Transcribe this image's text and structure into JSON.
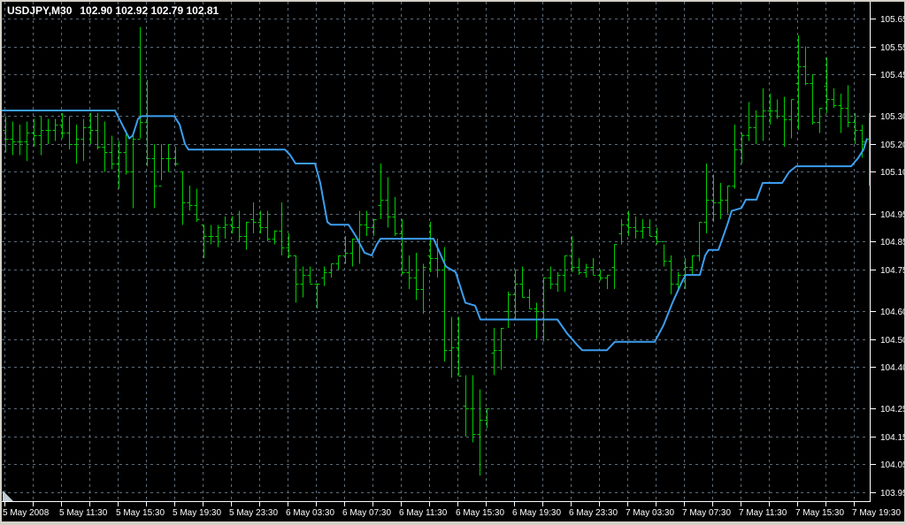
{
  "window": {
    "title_symbol": "USDJPY,M30",
    "title_quotes": "102.90 102.92 102.79 102.81"
  },
  "chart_data": {
    "type": "ohlc-bar",
    "title": "USDJPY,M30",
    "symbol": "USDJPY",
    "timeframe": "M30",
    "quote": {
      "open": "102.90",
      "high": "102.92",
      "low": "102.79",
      "close": "102.81"
    },
    "y_axis": {
      "side": "right",
      "min": 103.95,
      "max": 105.65,
      "ticks": [
        105.65,
        105.55,
        105.45,
        105.3,
        105.2,
        105.1,
        104.95,
        104.85,
        104.75,
        104.6,
        104.5,
        104.4,
        104.25,
        104.15,
        104.05,
        103.95
      ]
    },
    "x_axis": {
      "labels": [
        "5 May 2008",
        "5 May 11:30",
        "5 May 15:30",
        "5 May 19:30",
        "5 May 23:30",
        "6 May 03:30",
        "6 May 07:30",
        "6 May 11:30",
        "6 May 15:30",
        "6 May 19:30",
        "6 May 23:30",
        "7 May 03:30",
        "7 May 07:30",
        "7 May 11:30",
        "7 May 15:30",
        "7 May 19:30"
      ]
    },
    "grid": {
      "visible": true,
      "style": "dashed"
    },
    "bars_ohlc_order": [
      "high",
      "low",
      "open",
      "close"
    ],
    "bars": [
      [
        105.3,
        105.17,
        105.25,
        105.22
      ],
      [
        105.28,
        105.16,
        105.22,
        105.21
      ],
      [
        105.27,
        105.16,
        105.21,
        105.21
      ],
      [
        105.28,
        105.14,
        105.21,
        105.24
      ],
      [
        105.29,
        105.19,
        105.24,
        105.23
      ],
      [
        105.3,
        105.16,
        105.23,
        105.25
      ],
      [
        105.29,
        105.2,
        105.25,
        105.25
      ],
      [
        105.29,
        105.21,
        105.25,
        105.27
      ],
      [
        105.31,
        105.22,
        105.27,
        105.24
      ],
      [
        105.3,
        105.18,
        105.24,
        105.2
      ],
      [
        105.27,
        105.13,
        105.2,
        105.22
      ],
      [
        105.29,
        105.14,
        105.22,
        105.26
      ],
      [
        105.31,
        105.2,
        105.26,
        105.25
      ],
      [
        105.31,
        105.18,
        105.25,
        105.19
      ],
      [
        105.28,
        105.1,
        105.19,
        105.17
      ],
      [
        105.23,
        105.11,
        105.17,
        105.13
      ],
      [
        105.21,
        105.04,
        105.13,
        105.17
      ],
      [
        105.25,
        105.09,
        105.17,
        105.1
      ],
      [
        105.23,
        104.97,
        105.1,
        105.22
      ],
      [
        105.62,
        105.22,
        105.22,
        105.28
      ],
      [
        105.43,
        105.12,
        105.28,
        105.15
      ],
      [
        105.2,
        104.97,
        105.15,
        105.05
      ],
      [
        105.2,
        105.07,
        105.05,
        105.15
      ],
      [
        105.2,
        105.1,
        105.15,
        105.15
      ],
      [
        105.19,
        105.12,
        105.15,
        105.13
      ],
      [
        105.1,
        104.91,
        105.1,
        104.99
      ],
      [
        105.05,
        104.96,
        104.99,
        104.98
      ],
      [
        105.04,
        104.92,
        104.98,
        104.93
      ],
      [
        104.91,
        104.79,
        104.91,
        104.87
      ],
      [
        104.91,
        104.84,
        104.87,
        104.87
      ],
      [
        104.91,
        104.83,
        104.87,
        104.9
      ],
      [
        104.94,
        104.86,
        104.9,
        104.91
      ],
      [
        104.94,
        104.88,
        104.91,
        104.9
      ],
      [
        104.96,
        104.85,
        104.9,
        104.87
      ],
      [
        104.92,
        104.82,
        104.87,
        104.92
      ],
      [
        104.99,
        104.88,
        104.93,
        104.92
      ],
      [
        104.96,
        104.88,
        104.92,
        104.9
      ],
      [
        104.96,
        104.85,
        104.9,
        104.86
      ],
      [
        104.89,
        104.84,
        104.86,
        104.89
      ],
      [
        104.99,
        104.8,
        104.89,
        104.83
      ],
      [
        104.88,
        104.79,
        104.83,
        104.8
      ],
      [
        104.8,
        104.63,
        104.8,
        104.7
      ],
      [
        104.76,
        104.65,
        104.7,
        104.73
      ],
      [
        104.76,
        104.7,
        104.73,
        104.7
      ],
      [
        104.7,
        104.61,
        104.7,
        104.7
      ],
      [
        104.76,
        104.69,
        104.72,
        104.74
      ],
      [
        104.77,
        104.72,
        104.74,
        104.77
      ],
      [
        104.8,
        104.75,
        104.77,
        104.8
      ],
      [
        104.87,
        104.77,
        104.8,
        104.81
      ],
      [
        104.86,
        104.76,
        104.81,
        104.86
      ],
      [
        104.96,
        104.77,
        104.86,
        104.91
      ],
      [
        104.96,
        104.87,
        104.91,
        104.9
      ],
      [
        104.93,
        104.87,
        104.9,
        104.93
      ],
      [
        105.13,
        104.93,
        104.98,
        105.0
      ],
      [
        105.08,
        104.9,
        105.0,
        104.94
      ],
      [
        105.01,
        104.87,
        104.94,
        104.88
      ],
      [
        104.93,
        104.73,
        104.88,
        104.74
      ],
      [
        104.8,
        104.68,
        104.74,
        104.72
      ],
      [
        104.81,
        104.64,
        104.72,
        104.68
      ],
      [
        104.77,
        104.59,
        104.68,
        104.76
      ],
      [
        104.92,
        104.74,
        104.8,
        104.79
      ],
      [
        104.86,
        104.72,
        104.79,
        104.75
      ],
      [
        104.83,
        104.42,
        104.75,
        104.46
      ],
      [
        104.58,
        104.36,
        104.46,
        104.47
      ],
      [
        104.58,
        104.37,
        104.47,
        104.37
      ],
      [
        104.37,
        104.15,
        104.26,
        104.25
      ],
      [
        104.37,
        104.13,
        104.25,
        104.16
      ],
      [
        104.32,
        104.01,
        104.16,
        104.21
      ],
      [
        104.25,
        104.18,
        104.21,
        104.25
      ],
      [
        104.54,
        104.37,
        104.45,
        104.46
      ],
      [
        104.54,
        104.39,
        104.46,
        104.54
      ],
      [
        104.67,
        104.54,
        104.6,
        104.66
      ],
      [
        104.75,
        104.57,
        104.66,
        104.7
      ],
      [
        104.76,
        104.65,
        104.7,
        104.65
      ],
      [
        104.68,
        104.61,
        104.65,
        104.61
      ],
      [
        104.63,
        104.5,
        104.61,
        104.6
      ],
      [
        104.72,
        104.49,
        104.6,
        104.72
      ],
      [
        104.76,
        104.68,
        104.72,
        104.7
      ],
      [
        104.74,
        104.67,
        104.7,
        104.73
      ],
      [
        104.8,
        104.67,
        104.73,
        104.8
      ],
      [
        104.87,
        104.74,
        104.8,
        104.76
      ],
      [
        104.79,
        104.73,
        104.76,
        104.74
      ],
      [
        104.77,
        104.72,
        104.74,
        104.76
      ],
      [
        104.79,
        104.73,
        104.76,
        104.73
      ],
      [
        104.75,
        104.71,
        104.73,
        104.72
      ],
      [
        104.73,
        104.68,
        104.72,
        104.73
      ],
      [
        104.84,
        104.68,
        104.76,
        104.84
      ],
      [
        104.93,
        104.84,
        104.88,
        104.91
      ],
      [
        104.96,
        104.87,
        104.91,
        104.9
      ],
      [
        104.94,
        104.86,
        104.9,
        104.89
      ],
      [
        104.93,
        104.86,
        104.89,
        104.9
      ],
      [
        104.93,
        104.87,
        104.9,
        104.87
      ],
      [
        104.9,
        104.84,
        104.87,
        104.85
      ],
      [
        104.84,
        104.76,
        104.85,
        104.78
      ],
      [
        104.8,
        104.66,
        104.78,
        104.7
      ],
      [
        104.74,
        104.67,
        104.7,
        104.73
      ],
      [
        104.79,
        104.68,
        104.73,
        104.76
      ],
      [
        104.8,
        104.73,
        104.76,
        104.8
      ],
      [
        104.92,
        104.78,
        104.8,
        104.92
      ],
      [
        105.13,
        104.88,
        104.92,
        105.0
      ],
      [
        105.09,
        104.92,
        105.0,
        104.99
      ],
      [
        105.06,
        104.93,
        104.99,
        105.0
      ],
      [
        105.05,
        104.95,
        105.0,
        105.05
      ],
      [
        105.27,
        105.04,
        105.05,
        105.18
      ],
      [
        105.24,
        105.13,
        105.18,
        105.23
      ],
      [
        105.35,
        105.21,
        105.23,
        105.26
      ],
      [
        105.32,
        105.2,
        105.26,
        105.3
      ],
      [
        105.4,
        105.21,
        105.3,
        105.32
      ],
      [
        105.38,
        105.27,
        105.32,
        105.32
      ],
      [
        105.36,
        105.29,
        105.32,
        105.3
      ],
      [
        105.37,
        105.19,
        105.3,
        105.29
      ],
      [
        105.36,
        105.22,
        105.29,
        105.36
      ],
      [
        105.59,
        105.25,
        105.42,
        105.48
      ],
      [
        105.55,
        105.41,
        105.48,
        105.42
      ],
      [
        105.45,
        105.27,
        105.42,
        105.28
      ],
      [
        105.33,
        105.24,
        105.28,
        105.33
      ],
      [
        105.51,
        105.31,
        105.41,
        105.36
      ],
      [
        105.4,
        105.33,
        105.36,
        105.34
      ],
      [
        105.38,
        105.24,
        105.34,
        105.33
      ],
      [
        105.41,
        105.26,
        105.33,
        105.28
      ],
      [
        105.31,
        105.2,
        105.28,
        105.25
      ],
      [
        105.27,
        105.15,
        105.25,
        105.21
      ],
      [
        105.31,
        105.05,
        105.22,
        105.19
      ]
    ],
    "indicator": {
      "name": "blue-step-line",
      "points": [
        [
          2,
          105.32
        ],
        [
          130,
          105.32
        ],
        [
          138,
          105.27
        ],
        [
          146,
          105.22
        ],
        [
          150,
          105.23
        ],
        [
          156,
          105.29
        ],
        [
          160,
          105.3
        ],
        [
          197,
          105.3
        ],
        [
          203,
          105.27
        ],
        [
          209,
          105.2
        ],
        [
          213,
          105.18
        ],
        [
          322,
          105.18
        ],
        [
          328,
          105.16
        ],
        [
          334,
          105.13
        ],
        [
          356,
          105.13
        ],
        [
          362,
          105.06
        ],
        [
          370,
          104.92
        ],
        [
          374,
          104.91
        ],
        [
          394,
          104.91
        ],
        [
          402,
          104.87
        ],
        [
          412,
          104.81
        ],
        [
          420,
          104.8
        ],
        [
          426,
          104.84
        ],
        [
          430,
          104.86
        ],
        [
          490,
          104.86
        ],
        [
          497,
          104.81
        ],
        [
          504,
          104.76
        ],
        [
          515,
          104.74
        ],
        [
          521,
          104.68
        ],
        [
          526,
          104.63
        ],
        [
          537,
          104.62
        ],
        [
          543,
          104.57
        ],
        [
          630,
          104.57
        ],
        [
          641,
          104.52
        ],
        [
          652,
          104.48
        ],
        [
          658,
          104.46
        ],
        [
          686,
          104.46
        ],
        [
          695,
          104.49
        ],
        [
          740,
          104.49
        ],
        [
          750,
          104.55
        ],
        [
          760,
          104.63
        ],
        [
          770,
          104.7
        ],
        [
          775,
          104.73
        ],
        [
          791,
          104.73
        ],
        [
          797,
          104.8
        ],
        [
          801,
          104.82
        ],
        [
          812,
          104.82
        ],
        [
          822,
          104.91
        ],
        [
          827,
          104.96
        ],
        [
          838,
          104.97
        ],
        [
          843,
          105.0
        ],
        [
          855,
          105.0
        ],
        [
          862,
          105.06
        ],
        [
          884,
          105.06
        ],
        [
          892,
          105.1
        ],
        [
          900,
          105.12
        ],
        [
          962,
          105.12
        ],
        [
          970,
          105.15
        ],
        [
          976,
          105.18
        ],
        [
          980,
          105.22
        ]
      ]
    },
    "colors": {
      "background": "#000000",
      "grid": "#5c6c7c",
      "bars": "#00CC00",
      "indicator": "#3C9EF0",
      "axis_text": "#FFFFFF",
      "axis_line": "#FFFFFF",
      "frame": "#d4d0c8",
      "title_text": "#FFFFFF"
    }
  }
}
